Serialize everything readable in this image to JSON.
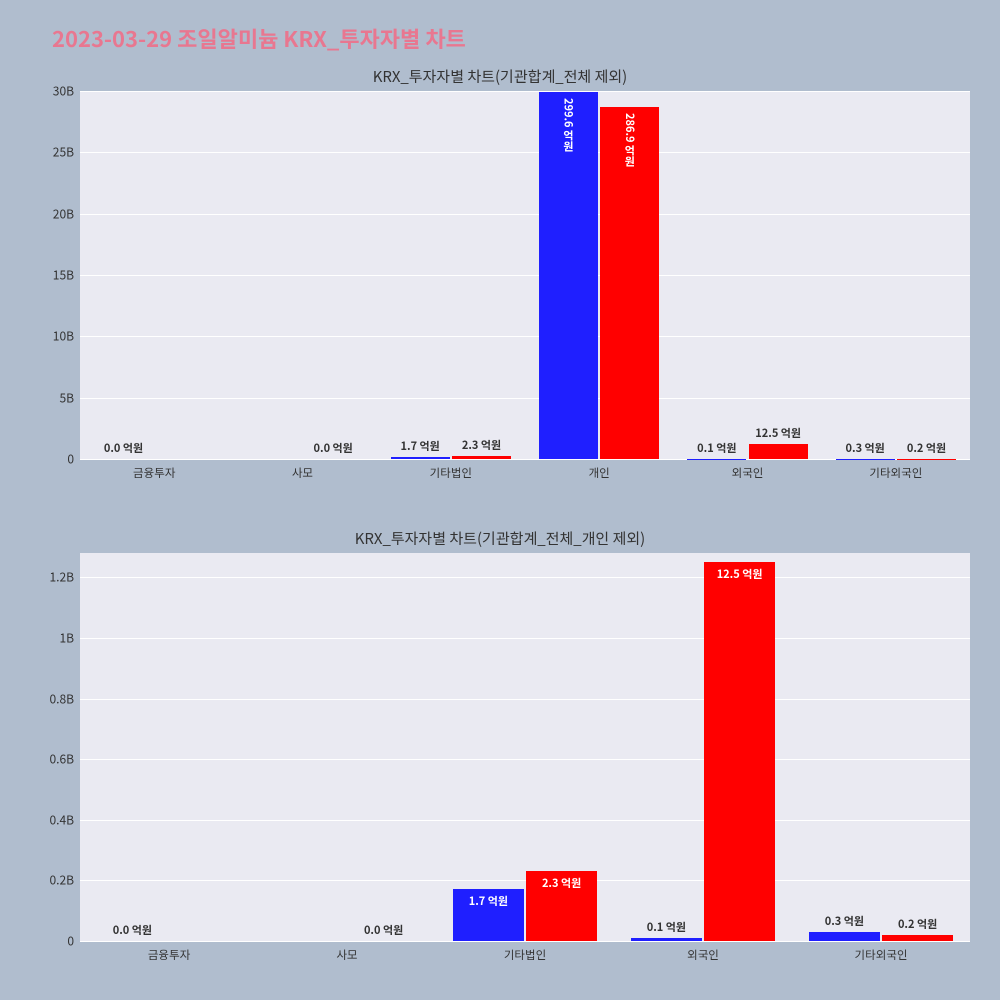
{
  "main_title": "2023-03-29 조일알미늄 KRX_투자자별 차트",
  "main_title_color": "#e87790",
  "main_title_fontsize": 22,
  "background_color": "#b0bdce",
  "plot_background": "#eaeaf2",
  "grid_color": "#ffffff",
  "text_color": "#333333",
  "bar_colors": {
    "blue": "#1f1fff",
    "red": "#ff0000"
  },
  "chart1": {
    "title": "KRX_투자자별 차트(기관합계_전체 제외)",
    "title_fontsize": 15,
    "type": "grouped_bar",
    "categories": [
      "금융투자",
      "사모",
      "기타법인",
      "개인",
      "외국인",
      "기타외국인"
    ],
    "ylim": [
      0,
      30
    ],
    "yticks": [
      0,
      5,
      10,
      15,
      20,
      25,
      30
    ],
    "ytick_labels": [
      "0",
      "5B",
      "10B",
      "15B",
      "20B",
      "25B",
      "30B"
    ],
    "bar_width": 0.4,
    "series": [
      {
        "color": "#1f1fff",
        "values": [
          0.0,
          0.0,
          0.17,
          29.96,
          0.01,
          0.03
        ],
        "labels": [
          "0.0 억원",
          "",
          "1.7 억원",
          "299.6 억원",
          "0.1 억원",
          "0.3 억원"
        ],
        "label_pos": [
          "above",
          "",
          "above",
          "inside",
          "above",
          "above"
        ]
      },
      {
        "color": "#ff0000",
        "values": [
          0.0,
          0.0,
          0.23,
          28.69,
          1.25,
          0.02
        ],
        "labels": [
          "",
          "0.0 억원",
          "2.3 억원",
          "286.9 억원",
          "12.5 억원",
          "0.2 억원"
        ],
        "label_pos": [
          "",
          "above",
          "above",
          "inside",
          "above",
          "above"
        ]
      }
    ]
  },
  "chart2": {
    "title": "KRX_투자자별 차트(기관합계_전체_개인 제외)",
    "title_fontsize": 15,
    "type": "grouped_bar",
    "categories": [
      "금융투자",
      "사모",
      "기타법인",
      "외국인",
      "기타외국인"
    ],
    "ylim": [
      0,
      1.28
    ],
    "yticks": [
      0,
      0.2,
      0.4,
      0.6,
      0.8,
      1.0,
      1.2
    ],
    "ytick_labels": [
      "0",
      "0.2B",
      "0.4B",
      "0.6B",
      "0.8B",
      "1B",
      "1.2B"
    ],
    "bar_width": 0.4,
    "series": [
      {
        "color": "#1f1fff",
        "values": [
          0.0,
          0.0,
          0.17,
          0.01,
          0.03
        ],
        "labels": [
          "0.0 억원",
          "",
          "1.7 억원",
          "0.1 억원",
          "0.3 억원"
        ],
        "label_pos": [
          "above",
          "",
          "inside-h",
          "above",
          "above"
        ]
      },
      {
        "color": "#ff0000",
        "values": [
          0.0,
          0.0,
          0.23,
          1.25,
          0.02
        ],
        "labels": [
          "",
          "0.0 억원",
          "2.3 억원",
          "12.5 억원",
          "0.2 억원"
        ],
        "label_pos": [
          "",
          "above",
          "inside-h",
          "inside-h",
          "above"
        ]
      }
    ]
  }
}
